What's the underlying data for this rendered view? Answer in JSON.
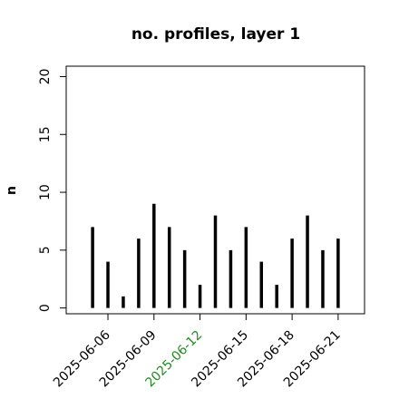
{
  "chart_data": {
    "type": "bar",
    "title": "no. profiles, layer 1",
    "y_label": "n",
    "categories": [
      "2025-06-05",
      "2025-06-06",
      "2025-06-07",
      "2025-06-08",
      "2025-06-09",
      "2025-06-10",
      "2025-06-11",
      "2025-06-12",
      "2025-06-13",
      "2025-06-14",
      "2025-06-15",
      "2025-06-16",
      "2025-06-17",
      "2025-06-18",
      "2025-06-19",
      "2025-06-20",
      "2025-06-21"
    ],
    "values": [
      7,
      4,
      1,
      6,
      9,
      7,
      5,
      2,
      8,
      5,
      7,
      4,
      2,
      6,
      8,
      5,
      6
    ],
    "color": "#000000",
    "ylim": [
      -0.5,
      20.9
    ],
    "yticks": [
      0,
      5,
      10,
      15,
      20
    ],
    "xticks": [
      "2025-06-06",
      "2025-06-09",
      "2025-06-12",
      "2025-06-15",
      "2025-06-18",
      "2025-06-21"
    ],
    "highlight_tick": "2025-06-12",
    "highlight_color": "#228b22"
  }
}
